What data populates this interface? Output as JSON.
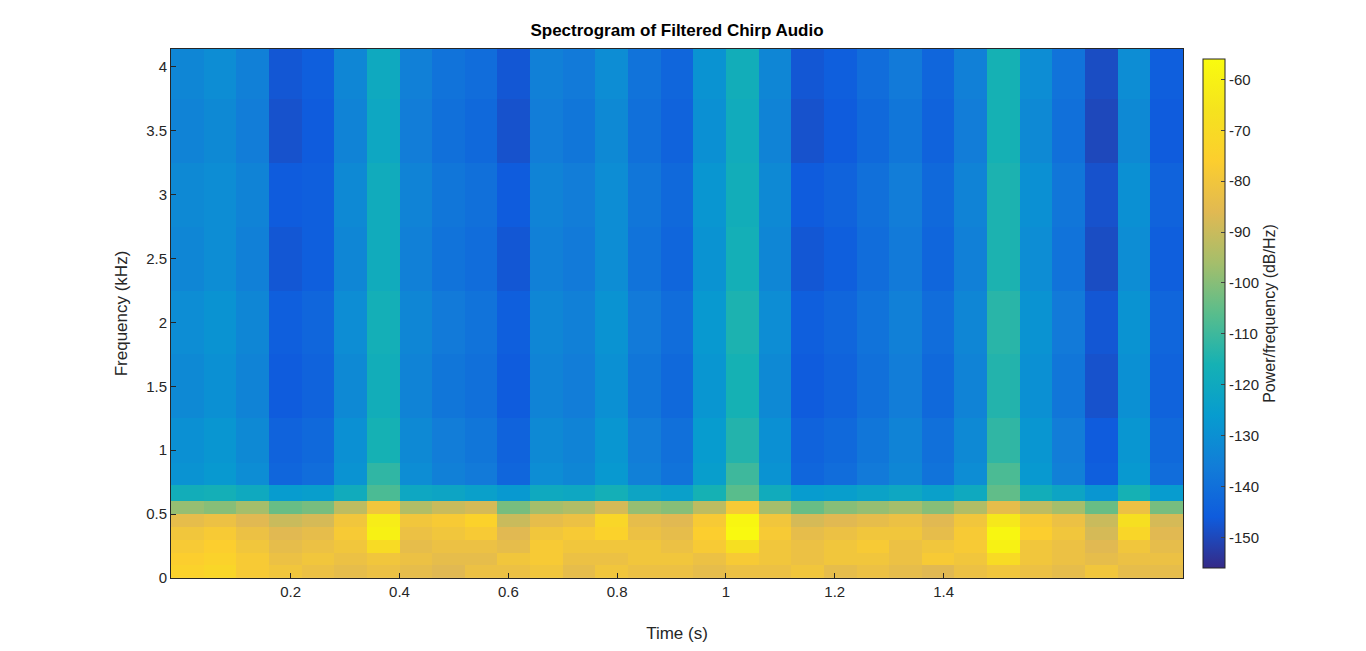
{
  "chart_data": {
    "type": "heatmap",
    "title": "Spectrogram of Filtered Chirp Audio",
    "x_label": "Time (s)",
    "y_label": "Frequency (kHz)",
    "x": [
      0.01,
      0.07,
      0.13,
      0.19,
      0.25,
      0.31,
      0.37,
      0.43,
      0.49,
      0.55,
      0.61,
      0.67,
      0.73,
      0.79,
      0.85,
      0.91,
      0.97,
      1.03,
      1.09,
      1.15,
      1.21,
      1.27,
      1.33,
      1.39,
      1.45,
      1.51,
      1.57,
      1.63,
      1.69,
      1.75,
      1.81
    ],
    "y": [
      0.05,
      0.15,
      0.25,
      0.35,
      0.45,
      0.55,
      0.65,
      0.8,
      1.0,
      1.5,
      2.0,
      2.5,
      3.0,
      3.5,
      4.0
    ],
    "z": [
      [
        -74,
        -72,
        -78,
        -80,
        -82,
        -84,
        -82,
        -84,
        -86,
        -82,
        -82,
        -80,
        -84,
        -80,
        -82,
        -82,
        -84,
        -82,
        -82,
        -80,
        -84,
        -82,
        -84,
        -86,
        -82,
        -80,
        -82,
        -84,
        -80,
        -84,
        -84
      ],
      [
        -76,
        -74,
        -78,
        -82,
        -80,
        -82,
        -80,
        -82,
        -84,
        -84,
        -80,
        -78,
        -82,
        -82,
        -80,
        -80,
        -82,
        -78,
        -80,
        -82,
        -80,
        -80,
        -82,
        -78,
        -80,
        -70,
        -80,
        -82,
        -84,
        -82,
        -82
      ],
      [
        -78,
        -76,
        -80,
        -84,
        -82,
        -80,
        -70,
        -84,
        -82,
        -82,
        -84,
        -78,
        -80,
        -80,
        -80,
        -82,
        -78,
        -68,
        -80,
        -82,
        -80,
        -78,
        -82,
        -80,
        -78,
        -60,
        -80,
        -82,
        -86,
        -80,
        -84
      ],
      [
        -80,
        -78,
        -82,
        -86,
        -84,
        -78,
        -60,
        -82,
        -80,
        -78,
        -86,
        -80,
        -78,
        -74,
        -82,
        -84,
        -76,
        -57,
        -78,
        -84,
        -82,
        -80,
        -80,
        -84,
        -78,
        -58,
        -76,
        -80,
        -88,
        -72,
        -86
      ],
      [
        -84,
        -82,
        -86,
        -90,
        -88,
        -80,
        -62,
        -80,
        -78,
        -74,
        -90,
        -84,
        -82,
        -72,
        -84,
        -86,
        -78,
        -58,
        -80,
        -88,
        -86,
        -84,
        -82,
        -86,
        -80,
        -64,
        -78,
        -82,
        -90,
        -68,
        -88
      ],
      [
        -98,
        -100,
        -96,
        -104,
        -102,
        -92,
        -80,
        -94,
        -90,
        -88,
        -102,
        -96,
        -94,
        -88,
        -98,
        -100,
        -92,
        -78,
        -96,
        -104,
        -100,
        -98,
        -96,
        -100,
        -94,
        -84,
        -92,
        -96,
        -104,
        -82,
        -102
      ],
      [
        -118,
        -117,
        -120,
        -126,
        -125,
        -119,
        -108,
        -121,
        -122,
        -124,
        -127,
        -120,
        -121,
        -117,
        -122,
        -124,
        -116,
        -106,
        -119,
        -126,
        -125,
        -123,
        -121,
        -124,
        -120,
        -105,
        -118,
        -122,
        -128,
        -116,
        -126
      ],
      [
        -129,
        -127,
        -131,
        -143,
        -141,
        -129,
        -112,
        -131,
        -135,
        -137,
        -143,
        -131,
        -133,
        -127,
        -135,
        -139,
        -125,
        -110,
        -129,
        -143,
        -141,
        -137,
        -133,
        -139,
        -131,
        -108,
        -127,
        -135,
        -145,
        -127,
        -141
      ],
      [
        -130,
        -128,
        -132,
        -144,
        -142,
        -130,
        -116,
        -132,
        -136,
        -138,
        -144,
        -132,
        -134,
        -128,
        -136,
        -140,
        -126,
        -114,
        -130,
        -144,
        -142,
        -138,
        -134,
        -140,
        -132,
        -112,
        -128,
        -136,
        -146,
        -128,
        -142
      ],
      [
        -132,
        -130,
        -134,
        -146,
        -144,
        -132,
        -118,
        -134,
        -138,
        -140,
        -146,
        -134,
        -136,
        -130,
        -138,
        -142,
        -128,
        -116,
        -132,
        -146,
        -144,
        -140,
        -136,
        -142,
        -134,
        -114,
        -130,
        -138,
        -148,
        -130,
        -144
      ],
      [
        -131,
        -129,
        -133,
        -145,
        -143,
        -131,
        -117,
        -133,
        -137,
        -139,
        -145,
        -133,
        -135,
        -129,
        -137,
        -141,
        -127,
        -115,
        -131,
        -145,
        -143,
        -139,
        -135,
        -141,
        -133,
        -113,
        -129,
        -137,
        -147,
        -129,
        -143
      ],
      [
        -133,
        -131,
        -135,
        -147,
        -145,
        -133,
        -119,
        -135,
        -139,
        -141,
        -147,
        -135,
        -137,
        -131,
        -139,
        -143,
        -129,
        -117,
        -133,
        -147,
        -145,
        -141,
        -137,
        -143,
        -135,
        -115,
        -131,
        -139,
        -149,
        -131,
        -145
      ],
      [
        -132,
        -131,
        -134,
        -146,
        -145,
        -132,
        -119,
        -134,
        -138,
        -140,
        -146,
        -134,
        -136,
        -131,
        -138,
        -142,
        -128,
        -118,
        -132,
        -146,
        -144,
        -140,
        -136,
        -142,
        -134,
        -115,
        -130,
        -138,
        -148,
        -130,
        -144
      ],
      [
        -134,
        -132,
        -136,
        -148,
        -146,
        -134,
        -121,
        -136,
        -140,
        -142,
        -148,
        -136,
        -138,
        -132,
        -140,
        -144,
        -130,
        -119,
        -134,
        -148,
        -146,
        -142,
        -138,
        -144,
        -136,
        -116,
        -132,
        -140,
        -150,
        -132,
        -146
      ],
      [
        -133,
        -131,
        -135,
        -147,
        -145,
        -133,
        -120,
        -135,
        -139,
        -141,
        -147,
        -135,
        -137,
        -131,
        -139,
        -143,
        -129,
        -118,
        -133,
        -147,
        -145,
        -141,
        -137,
        -143,
        -135,
        -116,
        -131,
        -139,
        -149,
        -131,
        -145
      ]
    ],
    "xlim": [
      -0.02,
      1.84
    ],
    "ylim": [
      0,
      4.14
    ],
    "xticks": [
      0.2,
      0.4,
      0.6,
      0.8,
      1,
      1.2,
      1.4
    ],
    "yticks": [
      0,
      0.5,
      1,
      1.5,
      2,
      2.5,
      3,
      3.5,
      4
    ],
    "colorbar": {
      "label": "Power/frequency (dB/Hz)",
      "range": [
        -156,
        -56
      ],
      "ticks": [
        -150,
        -140,
        -130,
        -120,
        -110,
        -100,
        -90,
        -80,
        -70,
        -60
      ]
    }
  }
}
